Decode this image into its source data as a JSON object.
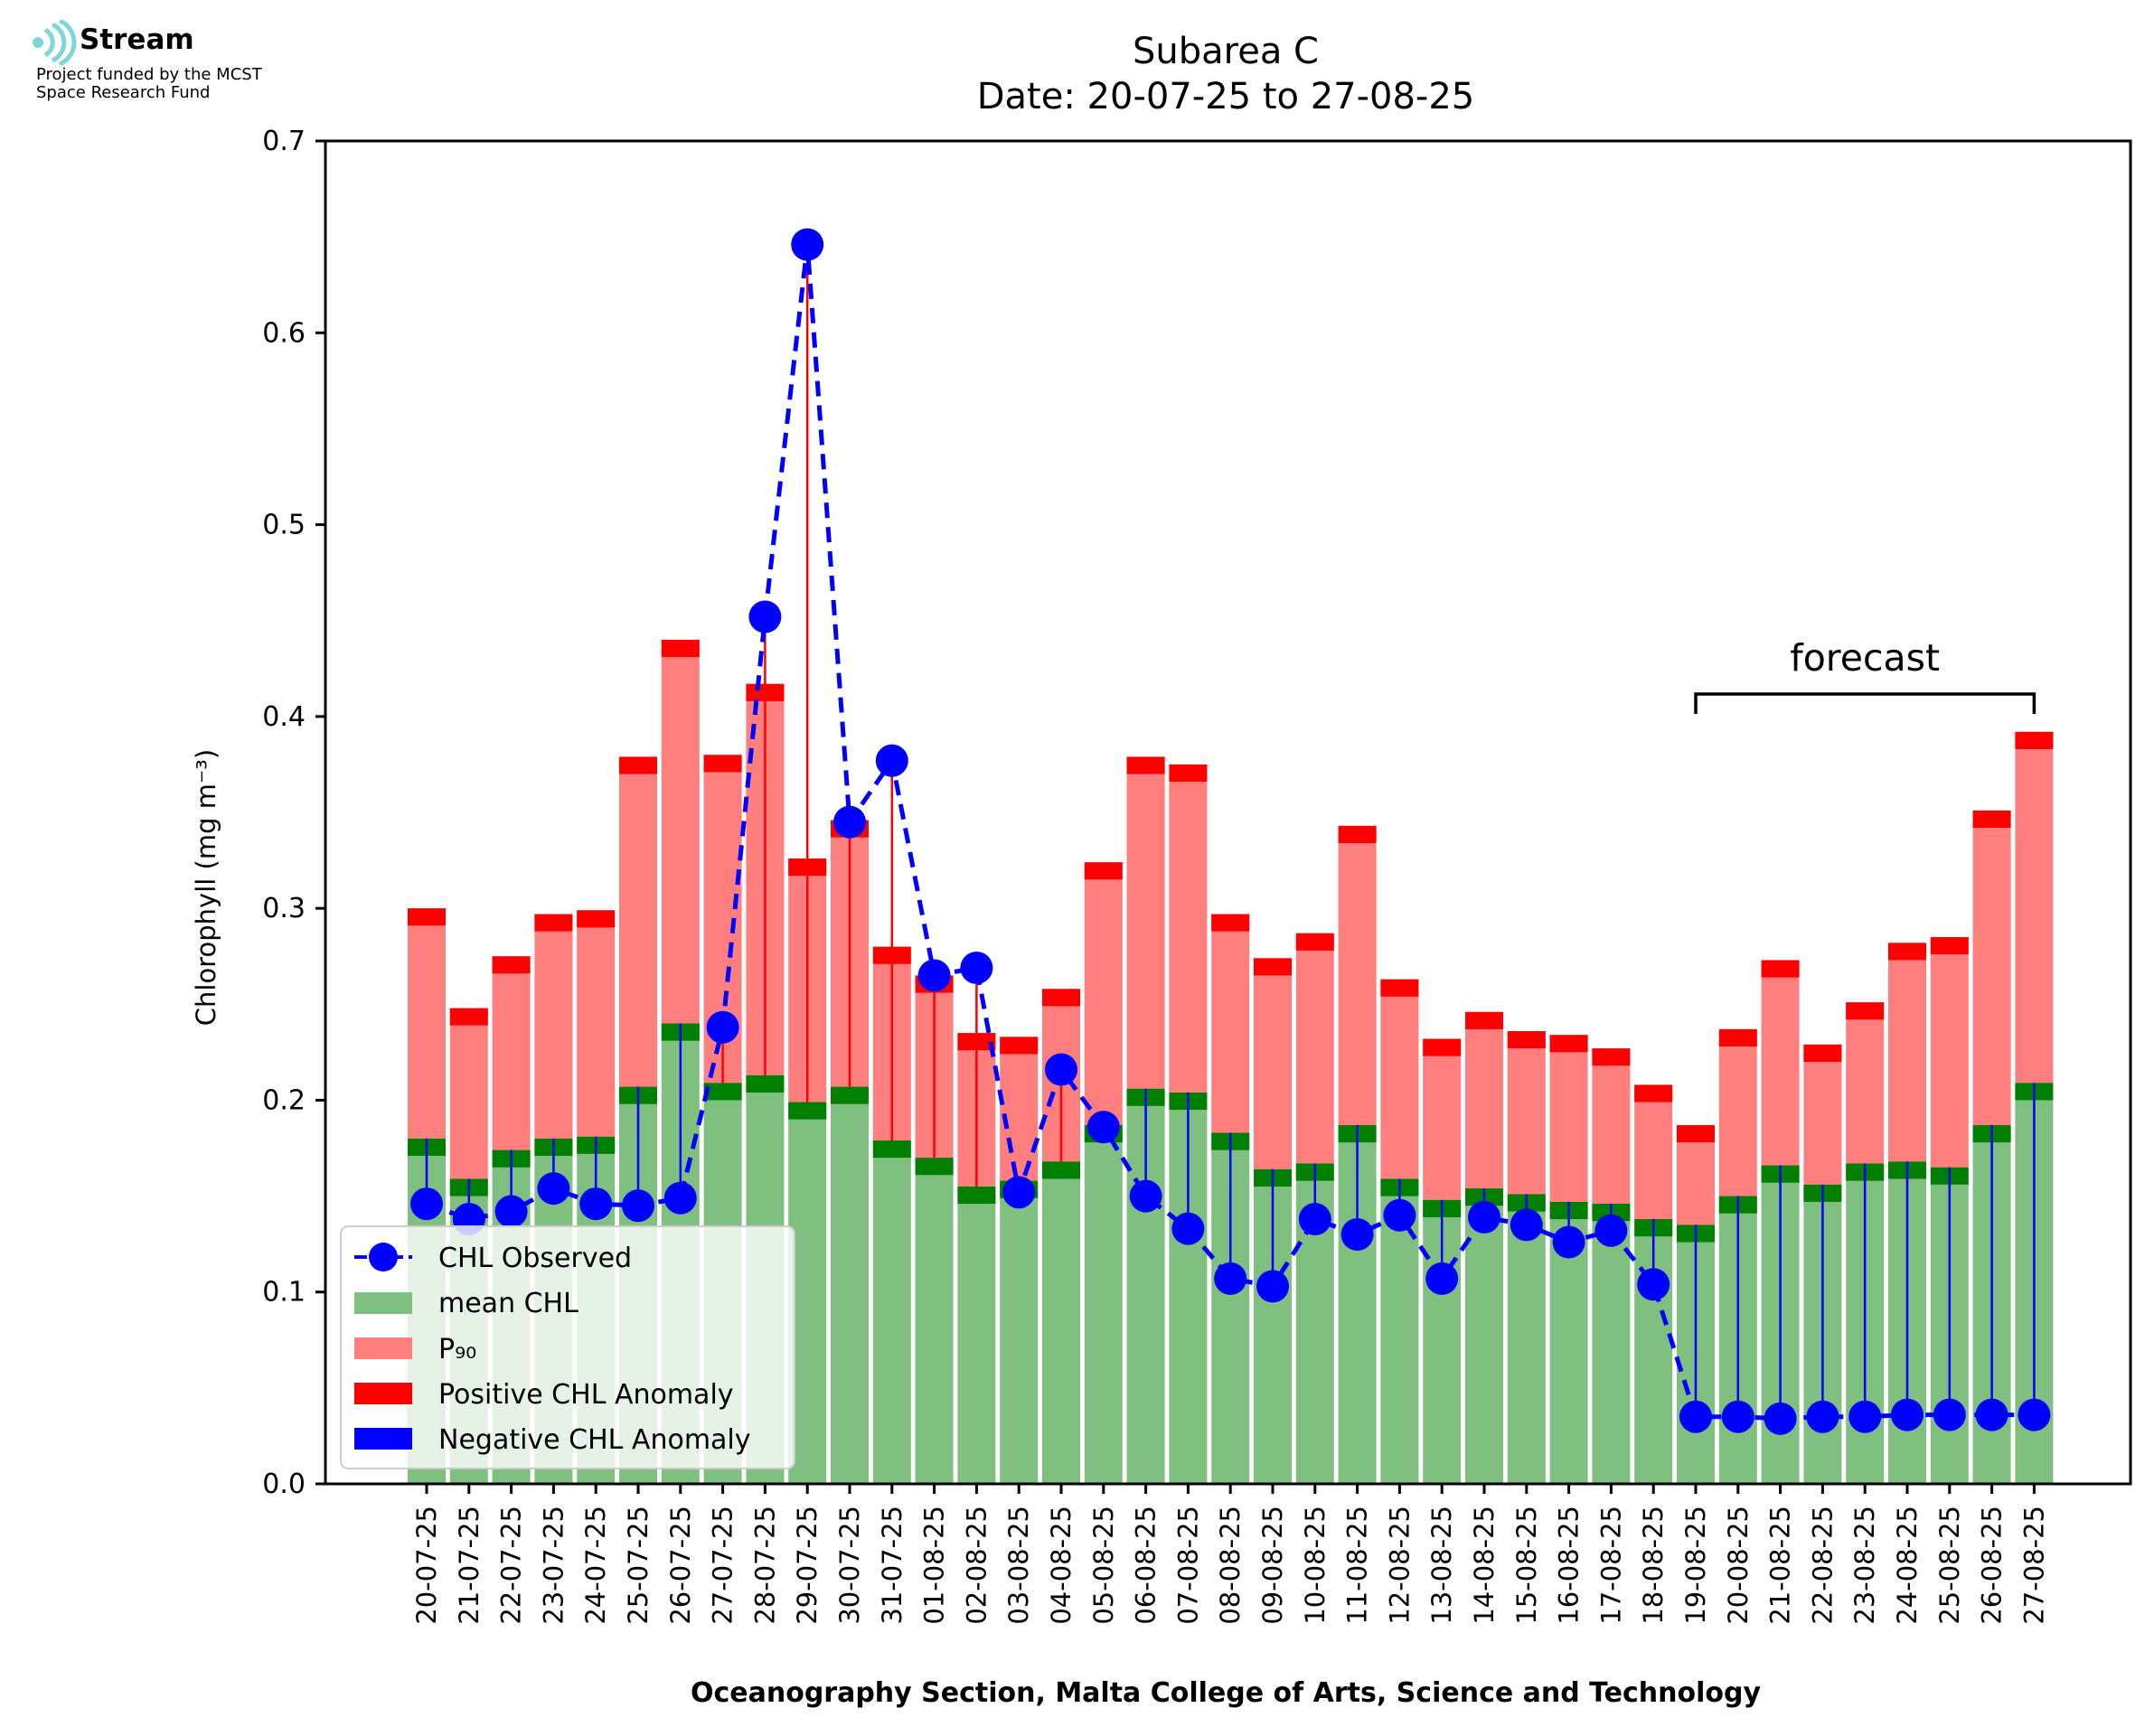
{
  "brand": {
    "name": "Stream",
    "line1": "Project funded by the MCST",
    "line2": "Space Research Fund",
    "accent_color": "#7fd6d6"
  },
  "colors": {
    "mean": "#7fbf7f",
    "mean_cap": "#007f00",
    "p90": "#ff7f7f",
    "p90_cap": "#ff0000",
    "observed": "#0000ff",
    "negative": "#0000ff",
    "positive": "#ff0000"
  },
  "chart_data": {
    "type": "bar",
    "title": "Subarea C",
    "subtitle": "Date: 20-07-25 to 27-08-25",
    "xlabel": "Oceanography Section, Malta College of Arts, Science and Technology",
    "ylabel": "Chlorophyll (mg m⁻³)",
    "ylim": [
      0,
      0.7
    ],
    "yticks": [
      "0.0",
      "0.1",
      "0.2",
      "0.3",
      "0.4",
      "0.5",
      "0.6",
      "0.7"
    ],
    "grid": false,
    "legend_position": "lower-left",
    "categories": [
      "20-07-25",
      "21-07-25",
      "22-07-25",
      "23-07-25",
      "24-07-25",
      "25-07-25",
      "26-07-25",
      "27-07-25",
      "28-07-25",
      "29-07-25",
      "30-07-25",
      "31-07-25",
      "01-08-25",
      "02-08-25",
      "03-08-25",
      "04-08-25",
      "05-08-25",
      "06-08-25",
      "07-08-25",
      "08-08-25",
      "09-08-25",
      "10-08-25",
      "11-08-25",
      "12-08-25",
      "13-08-25",
      "14-08-25",
      "15-08-25",
      "16-08-25",
      "17-08-25",
      "18-08-25",
      "19-08-25",
      "20-08-25",
      "21-08-25",
      "22-08-25",
      "23-08-25",
      "24-08-25",
      "25-08-25",
      "26-08-25",
      "27-08-25"
    ],
    "series": [
      {
        "name": "mean CHL",
        "values": [
          0.18,
          0.159,
          0.174,
          0.18,
          0.181,
          0.207,
          0.24,
          0.209,
          0.213,
          0.199,
          0.207,
          0.179,
          0.17,
          0.155,
          0.158,
          0.168,
          0.187,
          0.206,
          0.204,
          0.183,
          0.164,
          0.167,
          0.187,
          0.159,
          0.148,
          0.154,
          0.151,
          0.147,
          0.146,
          0.138,
          0.135,
          0.15,
          0.166,
          0.156,
          0.167,
          0.168,
          0.165,
          0.187,
          0.209
        ]
      },
      {
        "name": "P₉₀",
        "values": [
          0.3,
          0.248,
          0.275,
          0.297,
          0.299,
          0.379,
          0.44,
          0.38,
          0.417,
          0.326,
          0.346,
          0.28,
          0.265,
          0.235,
          0.233,
          0.258,
          0.324,
          0.379,
          0.375,
          0.297,
          0.274,
          0.287,
          0.343,
          0.263,
          0.232,
          0.246,
          0.236,
          0.234,
          0.227,
          0.208,
          0.187,
          0.237,
          0.273,
          0.229,
          0.251,
          0.282,
          0.285,
          0.351,
          0.392
        ]
      },
      {
        "name": "CHL Observed",
        "values": [
          0.146,
          0.138,
          0.142,
          0.154,
          0.146,
          0.145,
          0.149,
          0.238,
          0.452,
          0.646,
          0.345,
          0.377,
          0.265,
          0.269,
          0.152,
          0.216,
          0.186,
          0.15,
          0.133,
          0.107,
          0.103,
          0.138,
          0.13,
          0.14,
          0.107,
          0.139,
          0.135,
          0.126,
          0.132,
          0.104,
          0.035,
          0.035,
          0.034,
          0.035,
          0.035,
          0.036,
          0.036,
          0.036,
          0.036
        ]
      }
    ],
    "legend": [
      "CHL Observed",
      "mean CHL",
      "P₉₀",
      "Positive CHL Anomaly",
      "Negative CHL Anomaly"
    ],
    "annotation": {
      "text": "forecast",
      "from": "19-08-25",
      "to": "27-08-25"
    }
  }
}
